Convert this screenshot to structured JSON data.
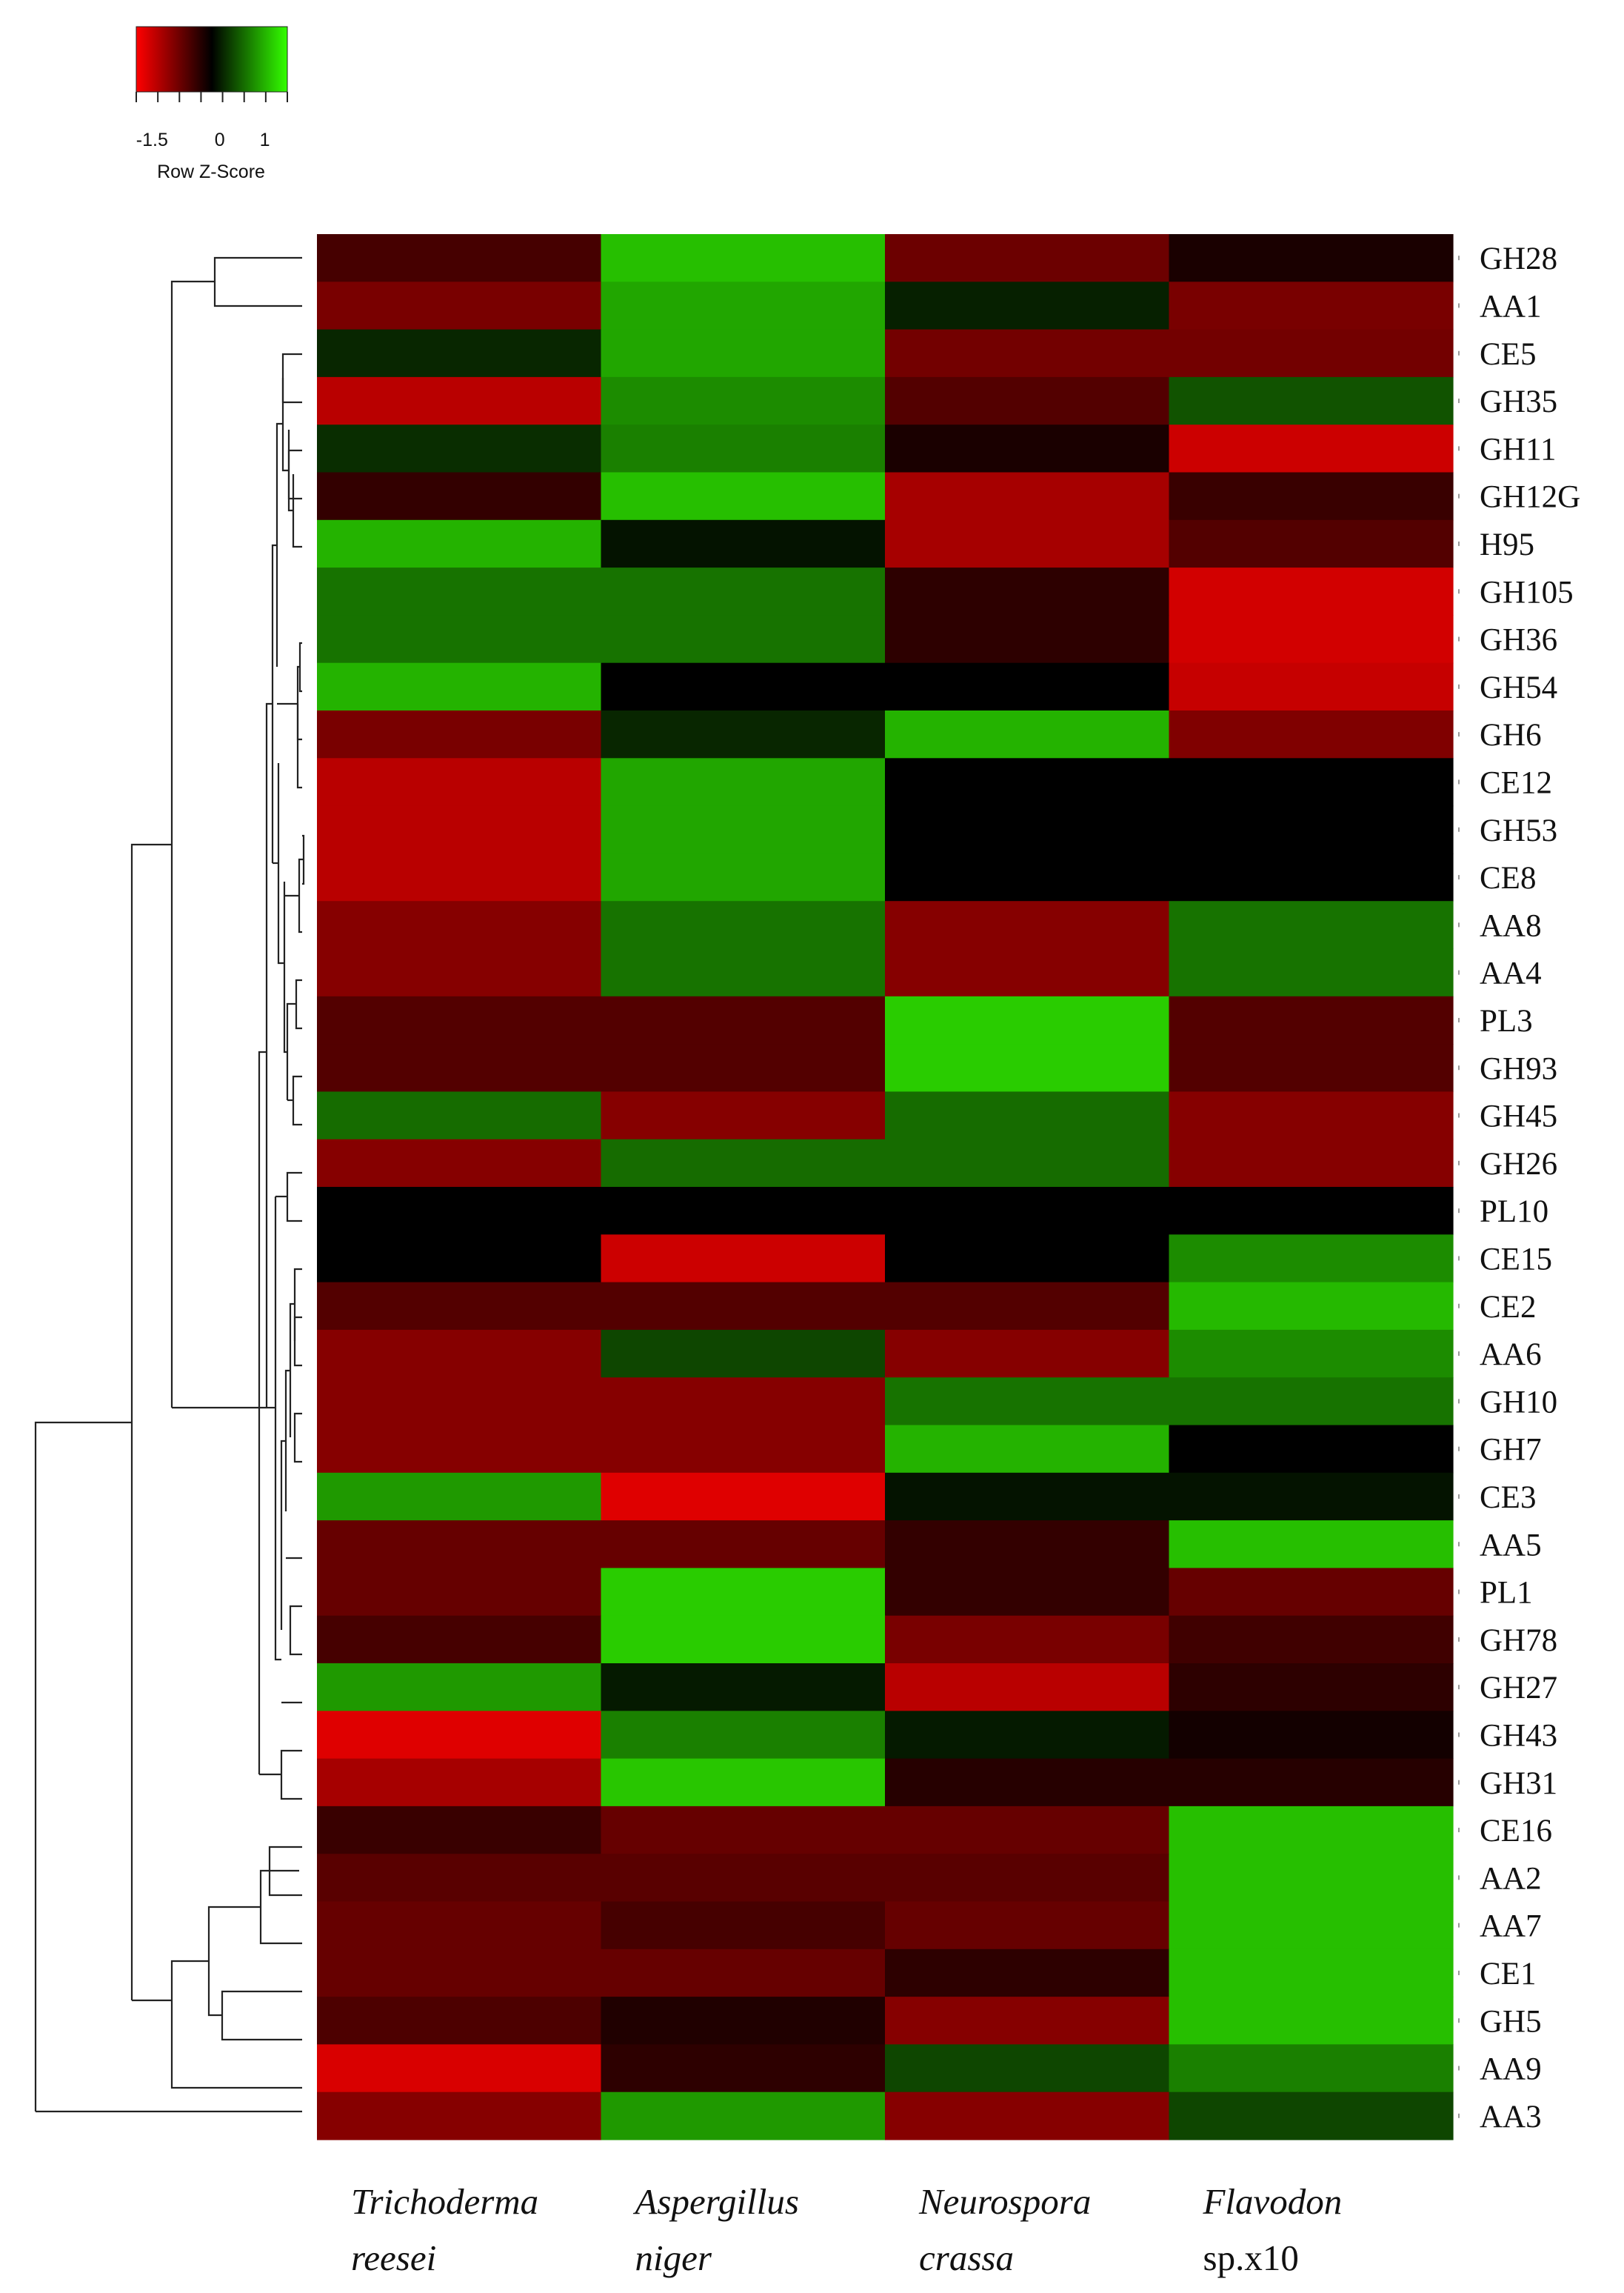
{
  "chart_data": {
    "type": "heatmap",
    "color_scale": {
      "low_color": "#ff0000",
      "mid_color": "#000000",
      "high_color": "#33ff00",
      "range": [
        -2,
        2
      ],
      "tick_labels": [
        "-1.5",
        "0",
        "1"
      ],
      "title": "Row Z-Score"
    },
    "columns": [
      {
        "line1": "Trichoderma",
        "line2": "reesei",
        "italic2": true
      },
      {
        "line1": "Aspergillus",
        "line2": "niger",
        "italic2": true
      },
      {
        "line1": "Neurospora",
        "line2": "crassa",
        "italic2": true
      },
      {
        "line1": "Flavodon",
        "line2": "sp.x10",
        "italic2": false
      }
    ],
    "rows": [
      "GH28",
      "AA1",
      "CE5",
      "GH35",
      "GH11",
      "GH12G",
      "H95",
      "GH105",
      "GH36",
      "GH54",
      "GH6",
      "CE12",
      "GH53",
      "CE8",
      "AA8",
      "AA4",
      "PL3",
      "GH93",
      "GH45",
      "GH26",
      "PL10",
      "CE15",
      "CE2",
      "AA6",
      "GH10",
      "GH7",
      "CE3",
      "AA5",
      "PL1",
      "GH78",
      "GH27",
      "GH43",
      "GH31",
      "CE16",
      "AA2",
      "AA7",
      "CE1",
      "GH5",
      "AA9",
      "AA3"
    ],
    "values": [
      [
        -0.55,
        1.5,
        -0.85,
        -0.2
      ],
      [
        -0.95,
        1.3,
        0.25,
        -0.95
      ],
      [
        0.3,
        1.3,
        -0.9,
        -0.9
      ],
      [
        -1.45,
        1.1,
        -0.65,
        0.65
      ],
      [
        0.35,
        1.0,
        -0.2,
        -1.6
      ],
      [
        -0.4,
        1.5,
        -1.3,
        -0.45
      ],
      [
        1.4,
        0.15,
        -1.3,
        -0.65
      ],
      [
        0.9,
        0.9,
        -0.35,
        -1.65
      ],
      [
        0.9,
        0.9,
        -0.35,
        -1.65
      ],
      [
        1.4,
        0.0,
        0.0,
        -1.55
      ],
      [
        -0.95,
        0.3,
        1.4,
        -1.0
      ],
      [
        -1.45,
        1.3,
        0.0,
        0.0
      ],
      [
        -1.45,
        1.3,
        0.0,
        0.0
      ],
      [
        -1.45,
        1.3,
        0.0,
        0.0
      ],
      [
        -1.05,
        0.9,
        -1.05,
        0.9
      ],
      [
        -1.05,
        0.9,
        -1.05,
        0.9
      ],
      [
        -0.65,
        -0.65,
        1.6,
        -0.65
      ],
      [
        -0.65,
        -0.65,
        1.6,
        -0.65
      ],
      [
        0.85,
        -1.05,
        0.85,
        -1.05
      ],
      [
        -1.05,
        0.85,
        0.85,
        -1.05
      ],
      [
        0.0,
        0.0,
        0.0,
        0.0
      ],
      [
        0.0,
        -1.6,
        0.0,
        1.1
      ],
      [
        -0.65,
        -0.65,
        -0.65,
        1.45
      ],
      [
        -1.05,
        0.55,
        -1.05,
        1.1
      ],
      [
        -1.05,
        -1.05,
        0.9,
        0.9
      ],
      [
        -1.05,
        -1.05,
        1.4,
        0.0
      ],
      [
        1.2,
        -1.75,
        0.15,
        0.15
      ],
      [
        -0.8,
        -0.8,
        -0.4,
        1.5
      ],
      [
        -0.8,
        1.6,
        -0.4,
        -0.8
      ],
      [
        -0.55,
        1.6,
        -0.95,
        -0.5
      ],
      [
        1.2,
        0.2,
        -1.45,
        -0.35
      ],
      [
        -1.75,
        1.0,
        0.2,
        -0.15
      ],
      [
        -1.3,
        1.55,
        -0.3,
        -0.3
      ],
      [
        -0.45,
        -0.8,
        -0.8,
        1.5
      ],
      [
        -0.7,
        -0.7,
        -0.7,
        1.5
      ],
      [
        -0.8,
        -0.55,
        -0.8,
        1.5
      ],
      [
        -0.8,
        -0.8,
        -0.35,
        1.5
      ],
      [
        -0.6,
        -0.25,
        -1.05,
        1.5
      ],
      [
        -1.7,
        -0.35,
        0.55,
        1.0
      ],
      [
        -1.05,
        1.2,
        -1.05,
        0.55
      ]
    ]
  }
}
